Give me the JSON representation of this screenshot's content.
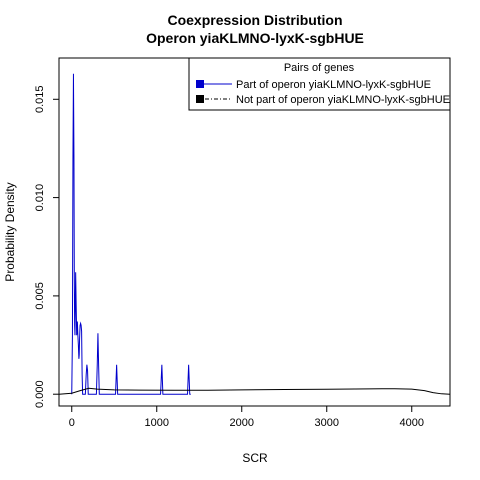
{
  "chart_data": {
    "type": "line",
    "title_line1": "Coexpression Distribution",
    "title_line2": "Operon yiaKLMNO-lyxK-sgbHUE",
    "xlabel": "SCR",
    "ylabel": "Probability Density",
    "xlim": [
      -150,
      4450
    ],
    "ylim": [
      -0.0006,
      0.0171
    ],
    "x_ticks": [
      0,
      1000,
      2000,
      3000,
      4000
    ],
    "x_tick_labels": [
      "0",
      "1000",
      "2000",
      "3000",
      "4000"
    ],
    "y_ticks": [
      0.0,
      0.005,
      0.01,
      0.015
    ],
    "y_tick_labels": [
      "0.000",
      "0.005",
      "0.010",
      "0.015"
    ],
    "grid": false,
    "legend": {
      "title": "Pairs of genes",
      "position": "top-right",
      "entries": [
        {
          "label": "Part of operon yiaKLMNO-lyxK-sgbHUE",
          "color": "#0000cc"
        },
        {
          "label": "Not part of operon yiaKLMNO-lyxK-sgbHUE",
          "color": "#000000"
        }
      ]
    },
    "series": [
      {
        "color": "#0000cc",
        "x": [
          0,
          8,
          14,
          20,
          26,
          30,
          34,
          38,
          42,
          46,
          52,
          58,
          62,
          66,
          72,
          78,
          84,
          88,
          92,
          98,
          104,
          110,
          116,
          122,
          128,
          132,
          140,
          150,
          160,
          170,
          178,
          186,
          194,
          200,
          280,
          290,
          300,
          308,
          316,
          324,
          334,
          344,
          500,
          515,
          528,
          540,
          552,
          565,
          1030,
          1045,
          1060,
          1072,
          1085,
          1350,
          1362,
          1375,
          1388,
          1400
        ],
        "y": [
          0.0,
          0.003,
          0.012,
          0.0163,
          0.012,
          0.006,
          0.0035,
          0.003,
          0.0045,
          0.0062,
          0.0045,
          0.003,
          0.0032,
          0.0037,
          0.003,
          0.0025,
          0.0018,
          0.002,
          0.0028,
          0.0035,
          0.0036,
          0.0035,
          0.0032,
          0.001,
          0.0,
          0.0,
          0.0,
          0.0,
          0.0,
          0.001,
          0.0015,
          0.0012,
          0.0,
          0.0,
          0.0,
          0.0,
          0.0015,
          0.0031,
          0.0015,
          0.0,
          0.0,
          0.0,
          0.0,
          0.0,
          0.0015,
          0.0,
          0.0,
          0.0,
          0.0,
          0.0,
          0.0015,
          0.0,
          0.0,
          0.0,
          0.0,
          0.0015,
          0.0,
          0.0
        ]
      },
      {
        "color": "#000000",
        "x": [
          -150,
          0,
          100,
          200,
          300,
          500,
          800,
          1200,
          1600,
          2000,
          2500,
          3000,
          3500,
          3800,
          4000,
          4150,
          4250,
          4350,
          4450
        ],
        "y": [
          0.0,
          5e-05,
          0.00018,
          0.0003,
          0.00026,
          0.00022,
          0.00021,
          0.0002,
          0.0002,
          0.00022,
          0.00024,
          0.00025,
          0.00027,
          0.00028,
          0.00026,
          0.00018,
          8e-05,
          2e-05,
          0.0
        ]
      }
    ]
  }
}
